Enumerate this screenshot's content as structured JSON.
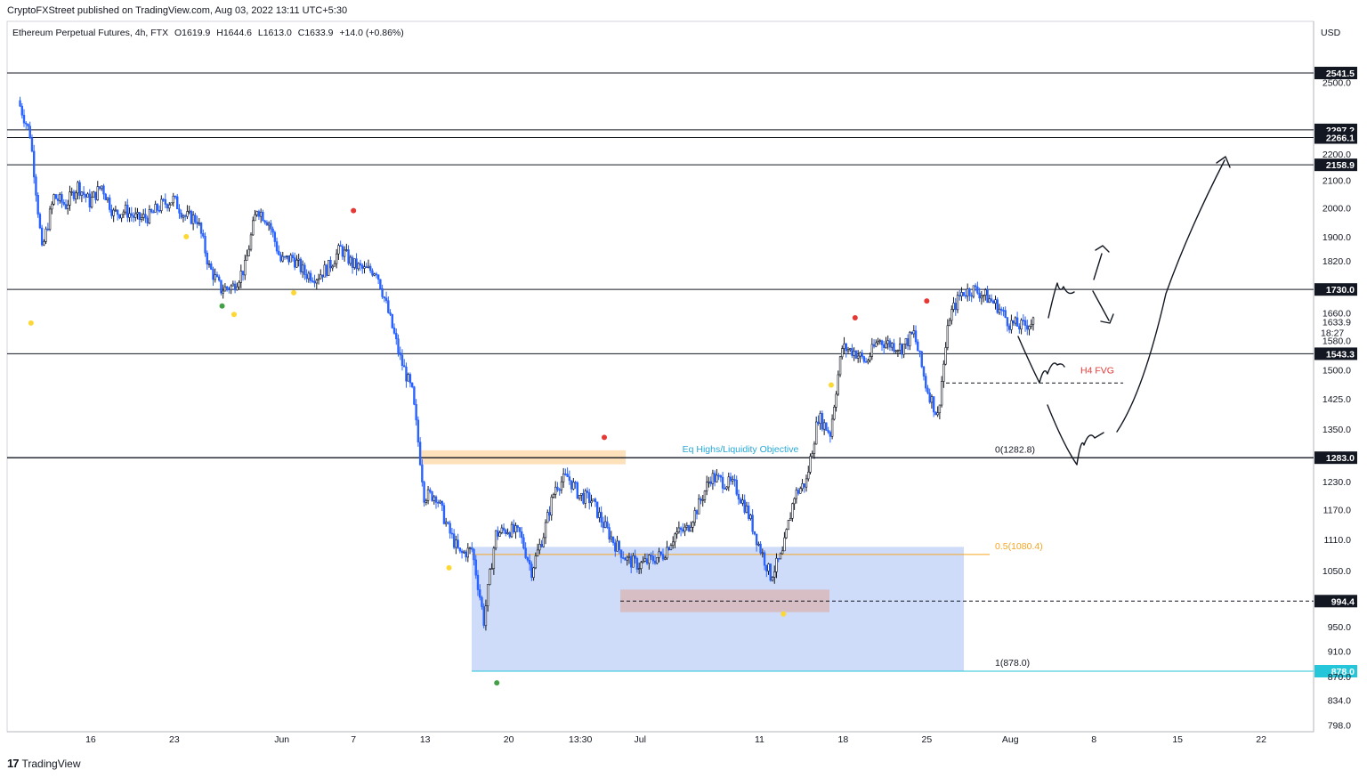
{
  "header": {
    "published_by": "CryptoFXStreet published on TradingView.com, Aug 03, 2022 13:11 UTC+5:30"
  },
  "symbol_bar": {
    "name": "Ethereum Perpetual Futures, 4h, FTX",
    "open": "O1619.9",
    "high": "H1644.6",
    "low": "L1613.0",
    "close": "C1633.9",
    "change": "+14.0 (+0.86%)"
  },
  "footer": {
    "brand": "TradingView",
    "logo_icon": "tradingview-logo-icon"
  },
  "chart_data": {
    "type": "candlestick",
    "currency": "USD",
    "y_scale": "log",
    "ylim": [
      785,
      2600
    ],
    "y_ticks": [
      798.0,
      834.0,
      870.0,
      910.0,
      950.0,
      1050.0,
      1110.0,
      1170.0,
      1230.0,
      1350.0,
      1425.0,
      1500.0,
      1580.0,
      1660.0,
      1820.0,
      1900.0,
      2000.0,
      2100.0,
      2200.0,
      2500.0
    ],
    "x_ticks": [
      "16",
      "23",
      "Jun",
      "7",
      "13",
      "20",
      "13:30",
      "Jul",
      "11",
      "18",
      "25",
      "Aug",
      "8",
      "15",
      "22"
    ],
    "price_path": [
      [
        "2022-05-10",
        2420
      ],
      [
        "2022-05-11",
        2280
      ],
      [
        "2022-05-12",
        1850
      ],
      [
        "2022-05-13",
        2040
      ],
      [
        "2022-05-14",
        2010
      ],
      [
        "2022-05-15",
        2080
      ],
      [
        "2022-05-16",
        2020
      ],
      [
        "2022-05-17",
        2080
      ],
      [
        "2022-05-18",
        1980
      ],
      [
        "2022-05-19",
        1990
      ],
      [
        "2022-05-20",
        1960
      ],
      [
        "2022-05-21",
        1970
      ],
      [
        "2022-05-22",
        2010
      ],
      [
        "2022-05-23",
        2030
      ],
      [
        "2022-05-24",
        1970
      ],
      [
        "2022-05-25",
        1960
      ],
      [
        "2022-05-26",
        1800
      ],
      [
        "2022-05-27",
        1730
      ],
      [
        "2022-05-28",
        1740
      ],
      [
        "2022-05-29",
        1800
      ],
      [
        "2022-05-30",
        2000
      ],
      [
        "2022-05-31",
        1950
      ],
      [
        "2022-06-01",
        1820
      ],
      [
        "2022-06-02",
        1830
      ],
      [
        "2022-06-03",
        1780
      ],
      [
        "2022-06-04",
        1770
      ],
      [
        "2022-06-05",
        1800
      ],
      [
        "2022-06-06",
        1860
      ],
      [
        "2022-06-07",
        1810
      ],
      [
        "2022-06-08",
        1790
      ],
      [
        "2022-06-09",
        1790
      ],
      [
        "2022-06-10",
        1660
      ],
      [
        "2022-06-11",
        1530
      ],
      [
        "2022-06-12",
        1440
      ],
      [
        "2022-06-13",
        1200
      ],
      [
        "2022-06-14",
        1200
      ],
      [
        "2022-06-15",
        1130
      ],
      [
        "2022-06-16",
        1080
      ],
      [
        "2022-06-17",
        1090
      ],
      [
        "2022-06-18",
        960
      ],
      [
        "2022-06-19",
        1120
      ],
      [
        "2022-06-20",
        1130
      ],
      [
        "2022-06-21",
        1120
      ],
      [
        "2022-06-22",
        1050
      ],
      [
        "2022-06-23",
        1120
      ],
      [
        "2022-06-24",
        1220
      ],
      [
        "2022-06-25",
        1240
      ],
      [
        "2022-06-26",
        1200
      ],
      [
        "2022-06-27",
        1190
      ],
      [
        "2022-06-28",
        1140
      ],
      [
        "2022-06-29",
        1100
      ],
      [
        "2022-06-30",
        1070
      ],
      [
        "2022-07-01",
        1060
      ],
      [
        "2022-07-02",
        1070
      ],
      [
        "2022-07-03",
        1080
      ],
      [
        "2022-07-04",
        1120
      ],
      [
        "2022-07-05",
        1130
      ],
      [
        "2022-07-06",
        1180
      ],
      [
        "2022-07-07",
        1240
      ],
      [
        "2022-07-08",
        1230
      ],
      [
        "2022-07-09",
        1220
      ],
      [
        "2022-07-10",
        1170
      ],
      [
        "2022-07-11",
        1100
      ],
      [
        "2022-07-12",
        1040
      ],
      [
        "2022-07-13",
        1080
      ],
      [
        "2022-07-14",
        1200
      ],
      [
        "2022-07-15",
        1230
      ],
      [
        "2022-07-16",
        1380
      ],
      [
        "2022-07-17",
        1340
      ],
      [
        "2022-07-18",
        1560
      ],
      [
        "2022-07-19",
        1550
      ],
      [
        "2022-07-20",
        1520
      ],
      [
        "2022-07-21",
        1580
      ],
      [
        "2022-07-22",
        1570
      ],
      [
        "2022-07-23",
        1560
      ],
      [
        "2022-07-24",
        1600
      ],
      [
        "2022-07-25",
        1460
      ],
      [
        "2022-07-26",
        1380
      ],
      [
        "2022-07-27",
        1650
      ],
      [
        "2022-07-28",
        1720
      ],
      [
        "2022-07-29",
        1730
      ],
      [
        "2022-07-30",
        1710
      ],
      [
        "2022-07-31",
        1680
      ],
      [
        "2022-08-01",
        1630
      ],
      [
        "2022-08-02",
        1620
      ],
      [
        "2022-08-03",
        1633.9
      ]
    ],
    "levels": [
      {
        "value": 2541.5,
        "label": "2541.5"
      },
      {
        "value": 2297.2,
        "label": "2297.2"
      },
      {
        "value": 2266.1,
        "label": "2266.1"
      },
      {
        "value": 2158.9,
        "label": "2158.9"
      },
      {
        "value": 1730.0,
        "label": "1730.0"
      },
      {
        "value": 1543.3,
        "label": "1543.3"
      },
      {
        "value": 1283.0,
        "label": "1283.0"
      },
      {
        "value": 994.4,
        "label": "994.4"
      },
      {
        "value": 878.0,
        "label": "878.0",
        "color": "#26c6da"
      }
    ],
    "current_price": {
      "value": "1633.9",
      "countdown": "18:27"
    },
    "fib_labels": [
      {
        "text": "0(1282.8)",
        "value": 1282.8
      },
      {
        "text": "0.5(1080.4)",
        "value": 1080.4,
        "color": "#f5a623"
      },
      {
        "text": "1(878.0)",
        "value": 878.0
      }
    ],
    "annotations": [
      {
        "text": "Eq Highs/Liquidity Objective",
        "color": "#26a8d6"
      },
      {
        "text": "H4 FVG",
        "color": "#e53935"
      }
    ],
    "zones": [
      {
        "name": "eq-highs-zone",
        "color": "#fbd7a3"
      },
      {
        "name": "fib-box",
        "color": "#7fa3f0"
      },
      {
        "name": "order-block",
        "color": "#d9b6b8"
      }
    ],
    "colors": {
      "up": "#26a69a",
      "down": "#2962ff",
      "candle_dark": "#131722",
      "line": "#131722"
    }
  }
}
